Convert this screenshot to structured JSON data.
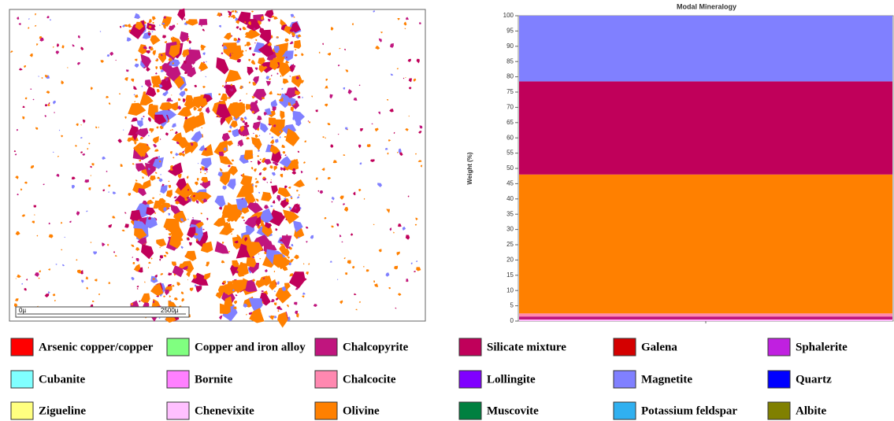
{
  "map": {
    "scale_labels": [
      "0µ",
      "2500µ"
    ]
  },
  "chart_data": {
    "type": "stacked_bar",
    "title": "Modal Mineralogy",
    "y_label": "Weight (%)",
    "categories": [
      null
    ],
    "ylim": [
      0,
      100
    ],
    "yticks": [
      0,
      5,
      10,
      15,
      20,
      25,
      30,
      35,
      40,
      45,
      50,
      55,
      60,
      65,
      70,
      75,
      80,
      85,
      90,
      95,
      100
    ],
    "grid": false,
    "series": [
      {
        "name": "Arsenic copper/copper",
        "color": "#ff0000",
        "values": [
          0
        ]
      },
      {
        "name": "Cubanite",
        "color": "#80ffff",
        "values": [
          0
        ]
      },
      {
        "name": "Zigueline",
        "color": "#ffff80",
        "values": [
          0
        ]
      },
      {
        "name": "Copper and iron alloy",
        "color": "#80ff80",
        "values": [
          0
        ]
      },
      {
        "name": "Bornite",
        "color": "#ff80ff",
        "values": [
          0
        ]
      },
      {
        "name": "Chenevixite",
        "color": "#ffc0ff",
        "values": [
          0.5
        ]
      },
      {
        "name": "Chalcopyrite",
        "color": "#c0157e",
        "values": [
          1.0
        ]
      },
      {
        "name": "Chalcocite",
        "color": "#ff88b0",
        "values": [
          1.0
        ]
      },
      {
        "name": "Olivine",
        "color": "#ff8000",
        "values": [
          45.5
        ]
      },
      {
        "name": "Silicate mixture",
        "color": "#c0005a",
        "values": [
          30.5
        ]
      },
      {
        "name": "Lollingite",
        "color": "#8000ff",
        "values": [
          0
        ]
      },
      {
        "name": "Muscovite",
        "color": "#008040",
        "values": [
          0
        ]
      },
      {
        "name": "Galena",
        "color": "#d40000",
        "values": [
          0
        ]
      },
      {
        "name": "Magnetite",
        "color": "#8080ff",
        "values": [
          21.5
        ]
      },
      {
        "name": "Potassium feldspar",
        "color": "#30b0f0",
        "values": [
          0
        ]
      },
      {
        "name": "Sphalerite",
        "color": "#c020e0",
        "values": [
          0
        ]
      },
      {
        "name": "Quartz",
        "color": "#0000ff",
        "values": [
          0
        ]
      },
      {
        "name": "Albite",
        "color": "#808000",
        "values": [
          0
        ]
      }
    ]
  }
}
